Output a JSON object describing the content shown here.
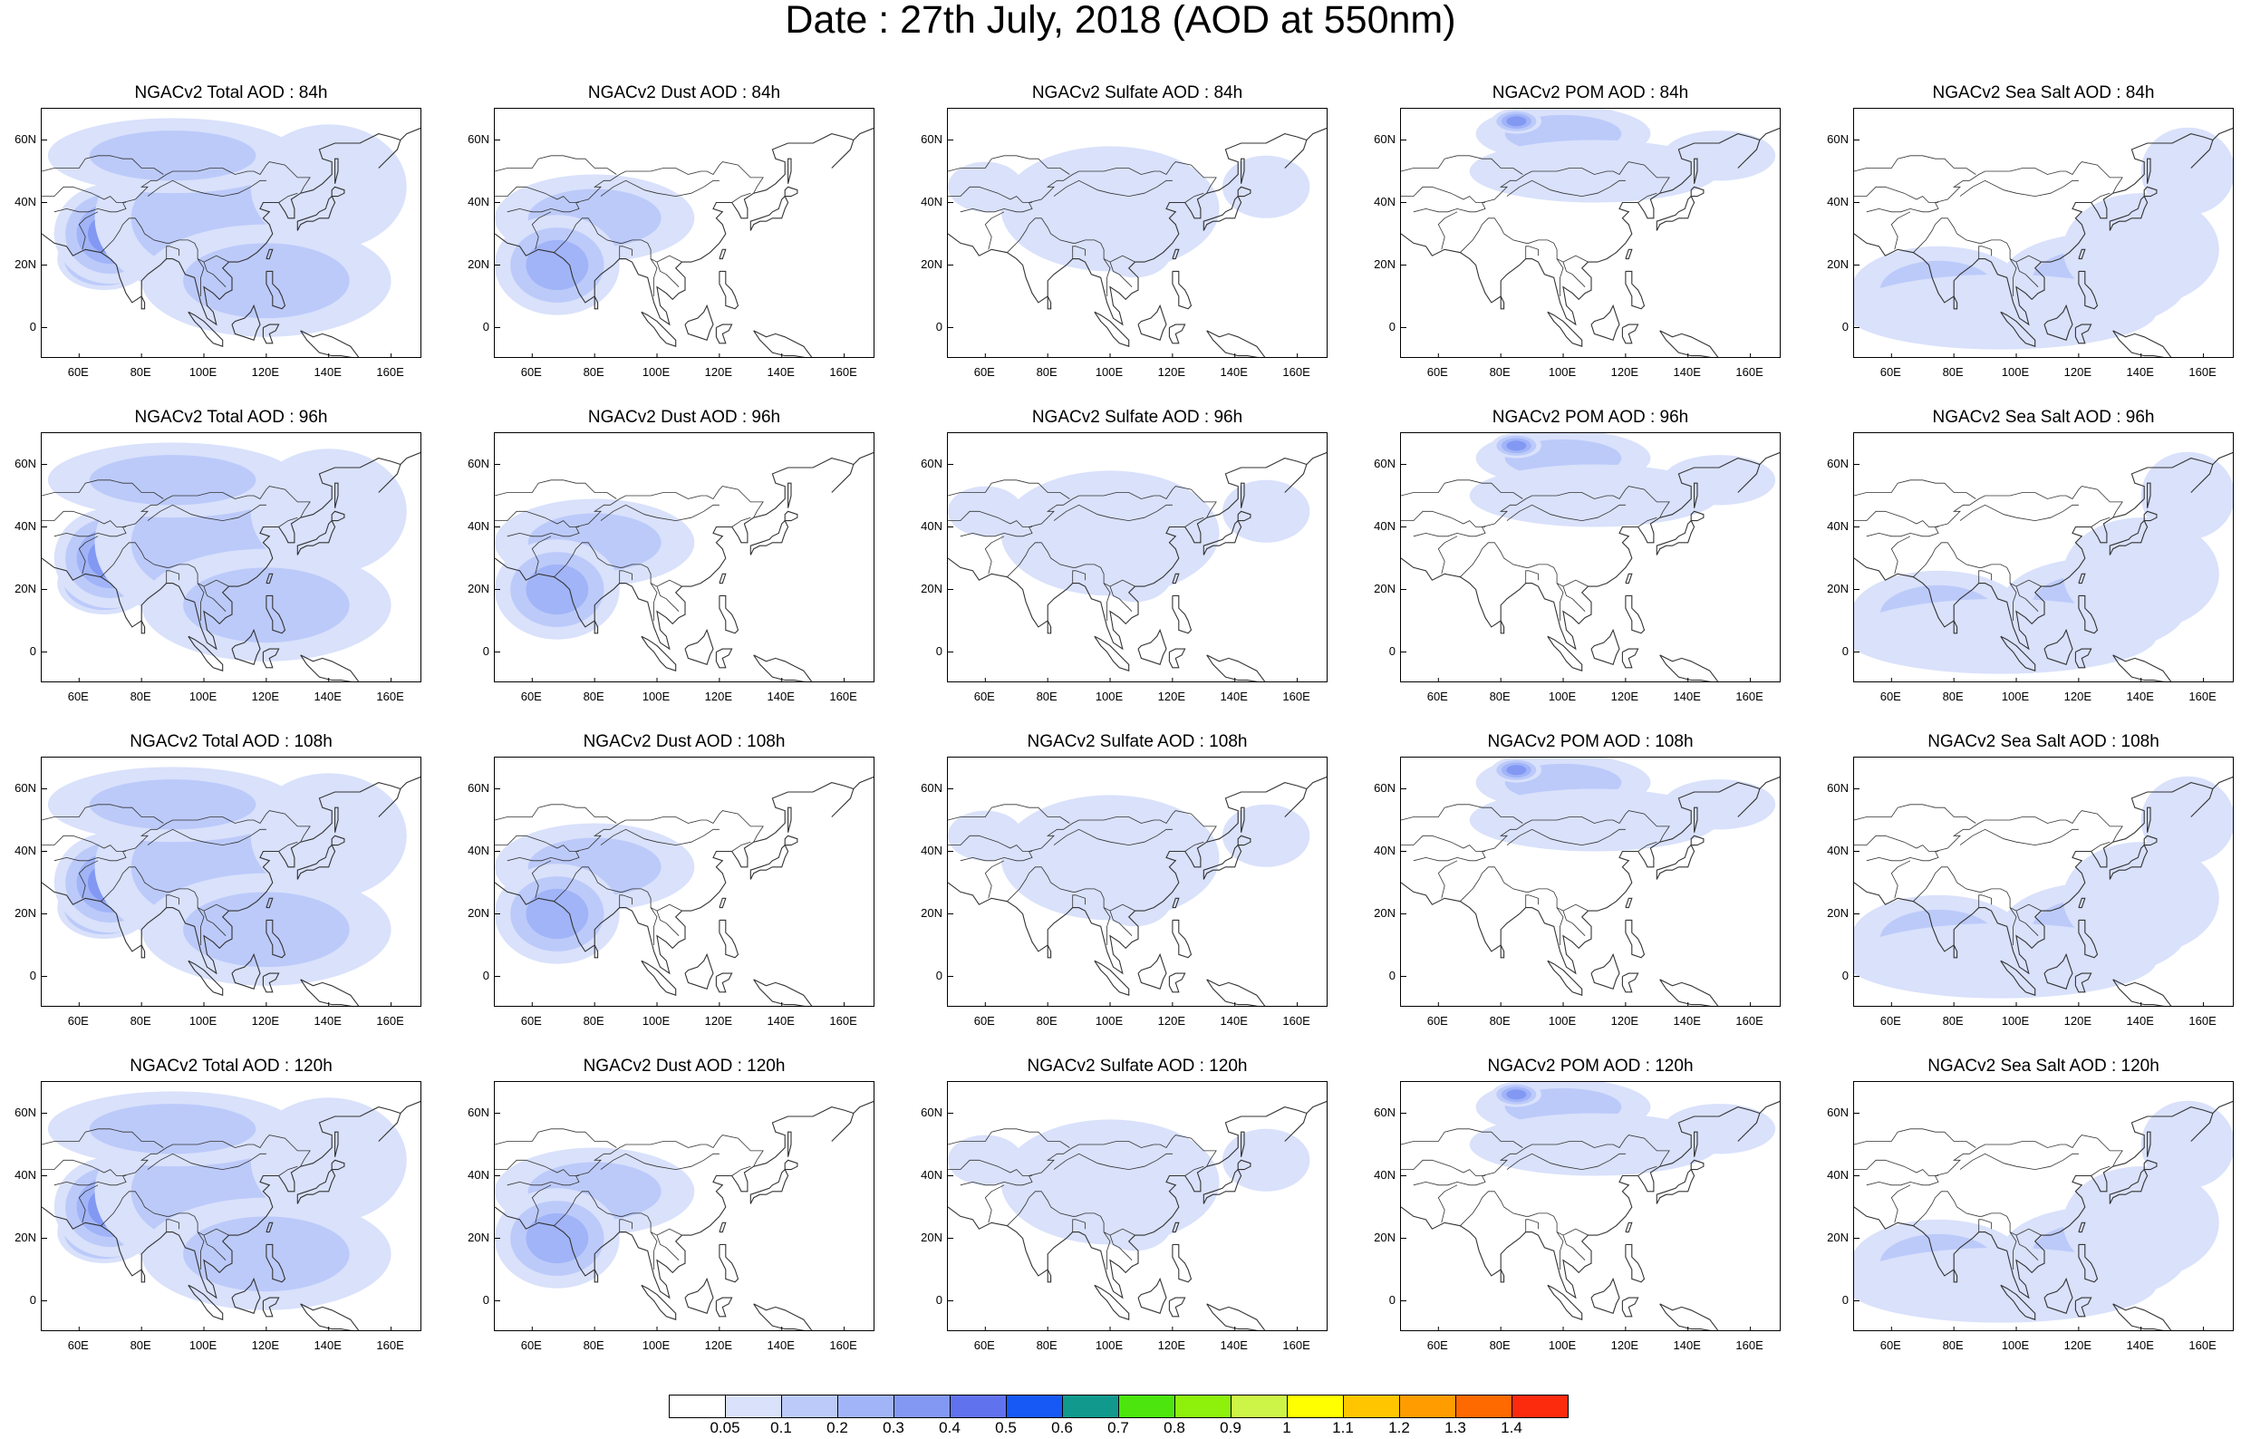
{
  "title": "Date : 27th July, 2018 (AOD at 550nm)",
  "axes": {
    "lat_labels": [
      "60N",
      "40N",
      "20N",
      "0"
    ],
    "lon_labels": [
      "60E",
      "80E",
      "100E",
      "120E",
      "140E",
      "160E"
    ]
  },
  "panels": [
    {
      "title": "NGACv2 Total AOD : 84h",
      "species": "total"
    },
    {
      "title": "NGACv2 Dust AOD : 84h",
      "species": "dust"
    },
    {
      "title": "NGACv2 Sulfate AOD : 84h",
      "species": "sulfate"
    },
    {
      "title": "NGACv2 POM AOD : 84h",
      "species": "pom"
    },
    {
      "title": "NGACv2 Sea Salt AOD : 84h",
      "species": "seasalt"
    },
    {
      "title": "NGACv2 Total AOD : 96h",
      "species": "total"
    },
    {
      "title": "NGACv2 Dust AOD : 96h",
      "species": "dust"
    },
    {
      "title": "NGACv2 Sulfate AOD : 96h",
      "species": "sulfate"
    },
    {
      "title": "NGACv2 POM AOD : 96h",
      "species": "pom"
    },
    {
      "title": "NGACv2 Sea Salt AOD : 96h",
      "species": "seasalt"
    },
    {
      "title": "NGACv2 Total AOD : 108h",
      "species": "total"
    },
    {
      "title": "NGACv2 Dust AOD : 108h",
      "species": "dust"
    },
    {
      "title": "NGACv2 Sulfate AOD : 108h",
      "species": "sulfate"
    },
    {
      "title": "NGACv2 POM AOD : 108h",
      "species": "pom"
    },
    {
      "title": "NGACv2 Sea Salt AOD : 108h",
      "species": "seasalt"
    },
    {
      "title": "NGACv2 Total AOD : 120h",
      "species": "total"
    },
    {
      "title": "NGACv2 Dust AOD : 120h",
      "species": "dust"
    },
    {
      "title": "NGACv2 Sulfate AOD : 120h",
      "species": "sulfate"
    },
    {
      "title": "NGACv2 POM AOD : 120h",
      "species": "pom"
    },
    {
      "title": "NGACv2 Sea Salt  AOD : 120h",
      "species": "seasalt"
    }
  ],
  "colorbar": {
    "colors": [
      "#ffffff",
      "#d9e1fb",
      "#bccafa",
      "#a1b4f8",
      "#8298f3",
      "#6172ef",
      "#1759f5",
      "#11998e",
      "#4ce50d",
      "#8ef10b",
      "#cdf548",
      "#ffff00",
      "#ffc600",
      "#ff9c00",
      "#ff6a00",
      "#fd2b0e"
    ],
    "labels": [
      "0.05",
      "0.1",
      "0.2",
      "0.3",
      "0.4",
      "0.5",
      "0.6",
      "0.7",
      "0.8",
      "0.9",
      "1",
      "1.1",
      "1.2",
      "1.3",
      "1.4"
    ]
  }
}
